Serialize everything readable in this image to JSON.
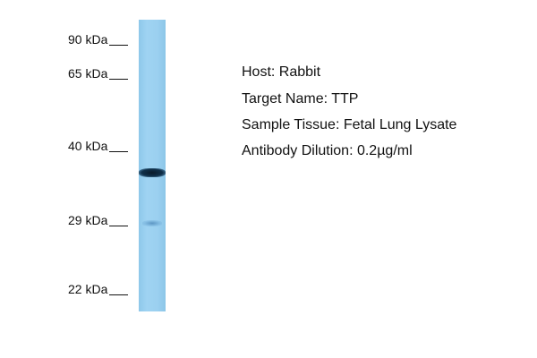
{
  "markers": [
    {
      "label": "90 kDa"
    },
    {
      "label": "65 kDa"
    },
    {
      "label": "40 kDa"
    },
    {
      "label": "29 kDa"
    },
    {
      "label": "22 kDa"
    }
  ],
  "lane_color": "#9bd0f0",
  "band_color": "#10304a",
  "info": {
    "host": "Host: Rabbit",
    "target": "Target Name: TTP",
    "tissue": "Sample Tissue: Fetal Lung Lysate",
    "dilution": "Antibody Dilution: 0.2µg/ml"
  }
}
